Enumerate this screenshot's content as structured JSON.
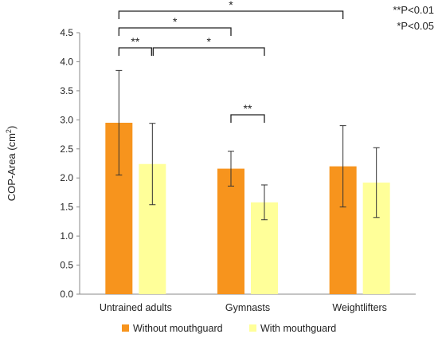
{
  "chart_data": {
    "type": "bar",
    "categories": [
      "Untrained adults",
      "Gymnasts",
      "Weightlifters"
    ],
    "series": [
      {
        "name": "Without mouthguard",
        "color": "#F7941D",
        "values": [
          2.95,
          2.16,
          2.2
        ],
        "errors": [
          0.9,
          0.3,
          0.7
        ]
      },
      {
        "name": "With mouthguard",
        "color": "#FFFF99",
        "values": [
          2.24,
          1.58,
          1.92
        ],
        "errors": [
          0.7,
          0.3,
          0.6
        ]
      }
    ],
    "ylabel_text": "COP-Area (cm",
    "ylabel_sup": "2",
    "ylabel_close": ")",
    "ylim": [
      0,
      4.5
    ],
    "yticks": [
      "0.0",
      "0.5",
      "1.0",
      "1.5",
      "2.0",
      "2.5",
      "3.0",
      "3.5",
      "4.0",
      "4.5"
    ],
    "grid": false,
    "legend_position": "bottom",
    "significance": [
      {
        "from": "Untrained adults|Without mouthguard",
        "to": "Weightlifters|Without mouthguard",
        "label": "*"
      },
      {
        "from": "Untrained adults|Without mouthguard",
        "to": "Gymnasts|Without mouthguard",
        "label": "*"
      },
      {
        "from": "Untrained adults|Without mouthguard",
        "to": "Untrained adults|With mouthguard",
        "label": "**"
      },
      {
        "from": "Untrained adults|With mouthguard",
        "to": "Gymnasts|With mouthguard",
        "label": "*"
      },
      {
        "from": "Gymnasts|Without mouthguard",
        "to": "Gymnasts|With mouthguard",
        "label": "**"
      }
    ],
    "notes": [
      "**P<0.01",
      "*P<0.05"
    ]
  }
}
